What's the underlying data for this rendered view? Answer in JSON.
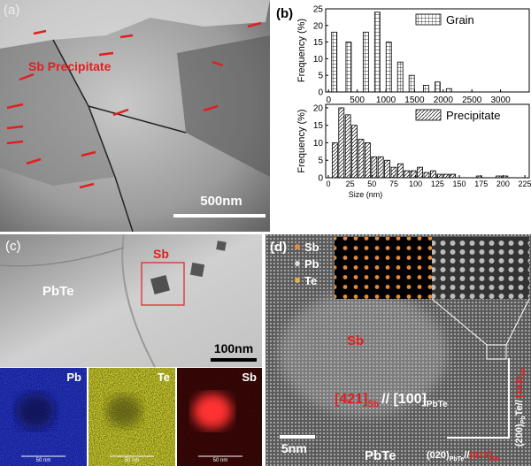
{
  "panels": {
    "a": {
      "label": "(a)",
      "annotation": "Sb Precipitate",
      "scale_bar": "500nm"
    },
    "b": {
      "label": "(b)"
    },
    "c": {
      "label": "(c)",
      "annotation": "Sb",
      "matrix": "PbTe",
      "scale_bar": "100nm",
      "maps": [
        {
          "element": "Pb",
          "scale": "50 nm"
        },
        {
          "element": "Te",
          "scale": "50 nm"
        },
        {
          "element": "Sb",
          "scale": "50 nm"
        }
      ]
    },
    "d": {
      "label": "(d)",
      "legend": [
        "Sb",
        "Pb",
        "Te"
      ],
      "region": "Sb",
      "matrix": "PbTe",
      "scale_bar": "5nm",
      "zone_axis": {
        "sb_index": "[421]",
        "sb_sub": "Sb",
        "pbte_index": "// [100]",
        "pbte_sub": "PbTe"
      },
      "vertical_relation": {
        "pbte_plane": "(200)",
        "pbte_sub": "Pb",
        "pbte_rest": "Te//",
        "sb_plane": "(112)",
        "sb_sub": "Sb"
      },
      "horizontal_relation": {
        "pbte_plane": "(020)",
        "pbte_sub": "PbTe",
        "sep": "//",
        "sb_plane": "(012)",
        "sb_sub": "Sb"
      }
    }
  },
  "chart_data": [
    {
      "type": "bar",
      "y_label": "Frequency (%)",
      "x": [
        100,
        350,
        650,
        850,
        1050,
        1250,
        1450,
        1700,
        1900,
        2100
      ],
      "series": [
        {
          "name": "Grain",
          "color": "#ffffff",
          "values": [
            18,
            15,
            18,
            24,
            15,
            9,
            5,
            2,
            3,
            1
          ]
        }
      ],
      "xlim": [
        -50,
        3500
      ],
      "xticks": [
        0,
        500,
        1000,
        1500,
        2000,
        2500,
        3000
      ],
      "ylim": [
        0,
        25
      ],
      "yticks": [
        0,
        5,
        10,
        15,
        20,
        25
      ],
      "hatch": "grid"
    },
    {
      "type": "bar",
      "y_label": "Frequency (%)",
      "x_label": "Size (nm)",
      "x": [
        7.5,
        15,
        22.5,
        30,
        37.5,
        45,
        52.5,
        60,
        67.5,
        75,
        82.5,
        90,
        97.5,
        105,
        112.5,
        120,
        127.5,
        135,
        142.5,
        172.5,
        195,
        202.5
      ],
      "series": [
        {
          "name": "Precipitate",
          "color": "#ffffff",
          "values": [
            10,
            20,
            18,
            15,
            11,
            10,
            6,
            6,
            5,
            3,
            4,
            2,
            2,
            3,
            1.5,
            2,
            1,
            1,
            1,
            0.5,
            0.5,
            0.5
          ]
        }
      ],
      "xlim": [
        -3,
        230
      ],
      "xticks": [
        0,
        25,
        50,
        75,
        100,
        125,
        150,
        175,
        200,
        225
      ],
      "ylim": [
        0,
        21
      ],
      "yticks": [
        0,
        5,
        10,
        15,
        20
      ],
      "hatch": "diagonal"
    }
  ]
}
